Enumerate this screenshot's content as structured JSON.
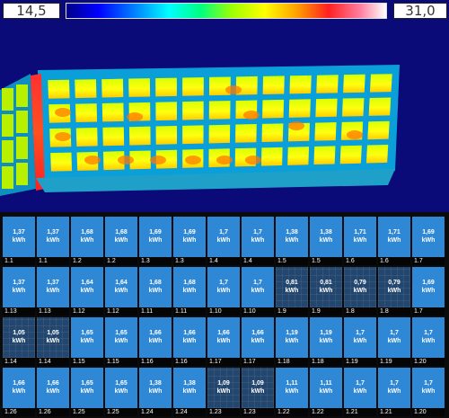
{
  "thermal": {
    "scale_min": "14,5",
    "scale_max": "31,0",
    "palette": [
      "#000088",
      "#0000ff",
      "#00a0ff",
      "#00ffff",
      "#00ff80",
      "#a0ff00",
      "#ffff00",
      "#ffa000",
      "#ff2020",
      "#ff80a0",
      "#ffffff"
    ]
  },
  "panels": {
    "unit": "kWh",
    "rows": [
      [
        {
          "value": "1,37",
          "label": "1.1",
          "dark": false
        },
        {
          "value": "1,37",
          "label": "1.1",
          "dark": false
        },
        {
          "value": "1,68",
          "label": "1.2",
          "dark": false
        },
        {
          "value": "1,68",
          "label": "1.2",
          "dark": false
        },
        {
          "value": "1,69",
          "label": "1.3",
          "dark": false
        },
        {
          "value": "1,69",
          "label": "1.3",
          "dark": false
        },
        {
          "value": "1,7",
          "label": "1.4",
          "dark": false
        },
        {
          "value": "1,7",
          "label": "1.4",
          "dark": false
        },
        {
          "value": "1,38",
          "label": "1.5",
          "dark": false
        },
        {
          "value": "1,38",
          "label": "1.5",
          "dark": false
        },
        {
          "value": "1,71",
          "label": "1.6",
          "dark": false
        },
        {
          "value": "1,71",
          "label": "1.6",
          "dark": false
        },
        {
          "value": "1,69",
          "label": "1.7",
          "dark": false
        }
      ],
      [
        {
          "value": "1,37",
          "label": "1.13",
          "dark": false
        },
        {
          "value": "1,37",
          "label": "1.13",
          "dark": false
        },
        {
          "value": "1,64",
          "label": "1.12",
          "dark": false
        },
        {
          "value": "1,64",
          "label": "1.12",
          "dark": false
        },
        {
          "value": "1,68",
          "label": "1.11",
          "dark": false
        },
        {
          "value": "1,68",
          "label": "1.11",
          "dark": false
        },
        {
          "value": "1,7",
          "label": "1.10",
          "dark": false
        },
        {
          "value": "1,7",
          "label": "1.10",
          "dark": false
        },
        {
          "value": "0,81",
          "label": "1.9",
          "dark": true
        },
        {
          "value": "0,81",
          "label": "1.9",
          "dark": true
        },
        {
          "value": "0,79",
          "label": "1.8",
          "dark": true
        },
        {
          "value": "0,79",
          "label": "1.8",
          "dark": true
        },
        {
          "value": "1,69",
          "label": "1.7",
          "dark": false
        }
      ],
      [
        {
          "value": "1,05",
          "label": "1.14",
          "dark": true
        },
        {
          "value": "1,05",
          "label": "1.14",
          "dark": true
        },
        {
          "value": "1,65",
          "label": "1.15",
          "dark": false
        },
        {
          "value": "1,65",
          "label": "1.15",
          "dark": false
        },
        {
          "value": "1,66",
          "label": "1.16",
          "dark": false
        },
        {
          "value": "1,66",
          "label": "1.16",
          "dark": false
        },
        {
          "value": "1,66",
          "label": "1.17",
          "dark": false
        },
        {
          "value": "1,66",
          "label": "1.17",
          "dark": false
        },
        {
          "value": "1,19",
          "label": "1.18",
          "dark": false
        },
        {
          "value": "1,19",
          "label": "1.18",
          "dark": false
        },
        {
          "value": "1,7",
          "label": "1.19",
          "dark": false
        },
        {
          "value": "1,7",
          "label": "1.19",
          "dark": false
        },
        {
          "value": "1,7",
          "label": "1.20",
          "dark": false
        }
      ],
      [
        {
          "value": "1,66",
          "label": "1.26",
          "dark": false
        },
        {
          "value": "1,66",
          "label": "1.26",
          "dark": false
        },
        {
          "value": "1,65",
          "label": "1.25",
          "dark": false
        },
        {
          "value": "1,65",
          "label": "1.25",
          "dark": false
        },
        {
          "value": "1,38",
          "label": "1.24",
          "dark": false
        },
        {
          "value": "1,38",
          "label": "1.24",
          "dark": false
        },
        {
          "value": "1,09",
          "label": "1.23",
          "dark": true
        },
        {
          "value": "1,09",
          "label": "1.23",
          "dark": true
        },
        {
          "value": "1,11",
          "label": "1.22",
          "dark": false
        },
        {
          "value": "1,11",
          "label": "1.22",
          "dark": false
        },
        {
          "value": "1,7",
          "label": "1.21",
          "dark": false
        },
        {
          "value": "1,7",
          "label": "1.21",
          "dark": false
        },
        {
          "value": "1,7",
          "label": "1.20",
          "dark": false
        }
      ]
    ]
  }
}
